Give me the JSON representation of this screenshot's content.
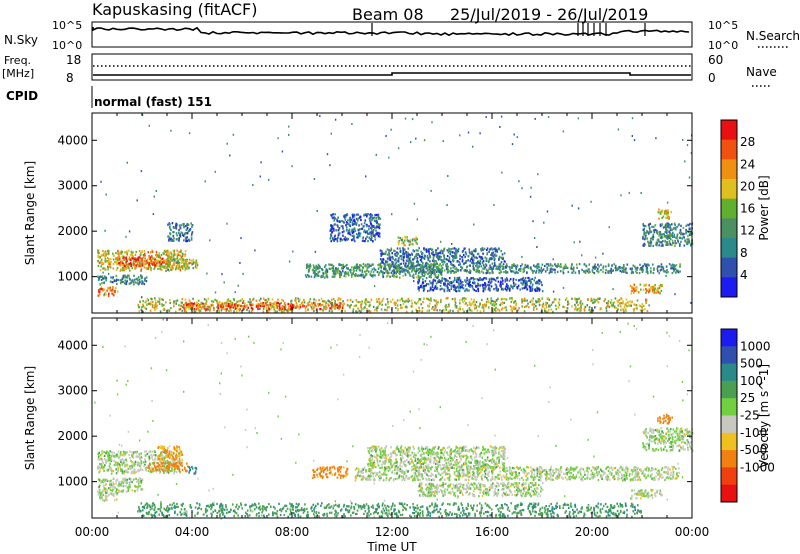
{
  "header": {
    "station": "Kapuskasing (fitACF)",
    "beam": "Beam 08",
    "date_range": "25/Jul/2019 - 26/Jul/2019"
  },
  "status_panels": {
    "nsky_label": "N.Sky",
    "nsky_ticks": [
      "10^5",
      "10^0"
    ],
    "nsearch_label": "N.Search",
    "nsearch_ticks": [
      "10^5",
      "10^0"
    ],
    "freq_label": "Freq.",
    "freq_unit": "[MHz]",
    "freq_ticks": [
      "18",
      "8"
    ],
    "nave_label": "Nave",
    "nave_ticks": [
      "60",
      "0"
    ],
    "cpid_label": "CPID",
    "cpid_value": "normal (fast) 151"
  },
  "chart_data": [
    {
      "type": "heatmap",
      "quantity": "Power",
      "ylabel": "Slant Range [km]",
      "colorbar_label": "Power [dB]",
      "colorbar_ticks": [
        "28",
        "24",
        "20",
        "16",
        "12",
        "8",
        "4"
      ],
      "colorbar_ticks_values": [
        28,
        24,
        20,
        16,
        12,
        8,
        4
      ],
      "colorbar_range": [
        0,
        32
      ],
      "colors": [
        "#1c1cf0",
        "#3050b0",
        "#2a8a8a",
        "#4a9060",
        "#60b030",
        "#e0c020",
        "#f09010",
        "#f05010",
        "#e81010"
      ],
      "ylim": [
        200,
        4600
      ],
      "yticks": [
        "1000",
        "2000",
        "3000",
        "4000"
      ],
      "yticks_values": [
        1000,
        2000,
        3000,
        4000
      ],
      "xlim_hours": [
        0,
        24
      ],
      "scatter_regions": [
        {
          "t": [
            0.2,
            3.8
          ],
          "r": [
            1150,
            1600
          ],
          "value": 20
        },
        {
          "t": [
            1.0,
            2.8
          ],
          "r": [
            1250,
            1450
          ],
          "value": 27
        },
        {
          "t": [
            2.8,
            4.2
          ],
          "r": [
            1200,
            1400
          ],
          "value": 18
        },
        {
          "t": [
            0.2,
            2.2
          ],
          "r": [
            850,
            1050
          ],
          "value": 10
        },
        {
          "t": [
            0.2,
            1.0
          ],
          "r": [
            600,
            800
          ],
          "value": 24
        },
        {
          "t": [
            3.0,
            4.0
          ],
          "r": [
            1800,
            2200
          ],
          "value": 8
        },
        {
          "t": [
            1.8,
            22.2
          ],
          "r": [
            250,
            550
          ],
          "value": 18
        },
        {
          "t": [
            3.5,
            10.0
          ],
          "r": [
            300,
            450
          ],
          "value": 26
        },
        {
          "t": [
            8.5,
            14.0
          ],
          "r": [
            1000,
            1300
          ],
          "value": 12
        },
        {
          "t": [
            11.5,
            23.5
          ],
          "r": [
            1100,
            1300
          ],
          "value": 10
        },
        {
          "t": [
            11.5,
            16.5
          ],
          "r": [
            1300,
            1650
          ],
          "value": 8
        },
        {
          "t": [
            12.2,
            13.0
          ],
          "r": [
            1700,
            1900
          ],
          "value": 16
        },
        {
          "t": [
            13.0,
            18.0
          ],
          "r": [
            700,
            1000
          ],
          "value": 6
        },
        {
          "t": [
            21.5,
            22.8
          ],
          "r": [
            650,
            850
          ],
          "value": 22
        },
        {
          "t": [
            22.0,
            24.0
          ],
          "r": [
            1700,
            2200
          ],
          "value": 10
        },
        {
          "t": [
            22.6,
            23.2
          ],
          "r": [
            2300,
            2500
          ],
          "value": 20
        },
        {
          "t": [
            9.5,
            11.5
          ],
          "r": [
            1800,
            2400
          ],
          "value": 6
        }
      ]
    },
    {
      "type": "heatmap",
      "quantity": "Velocity",
      "ylabel": "Slant Range [km]",
      "xlabel": "Time UT",
      "colorbar_label": "Velocity [m s^-1]",
      "colorbar_ticks": [
        "1000",
        "500",
        "100",
        "25",
        "-25",
        "-100",
        "-500",
        "-1000"
      ],
      "colorbar_ticks_values": [
        1000,
        500,
        100,
        25,
        -25,
        -100,
        -500,
        -1000
      ],
      "colors": [
        "#1c1cf0",
        "#3050b0",
        "#2a8a8a",
        "#4aa050",
        "#70d040",
        "#c8c8c0",
        "#f0c020",
        "#f08010",
        "#f04010",
        "#e81010"
      ],
      "ylim": [
        200,
        4600
      ],
      "yticks": [
        "1000",
        "2000",
        "3000",
        "4000"
      ],
      "yticks_values": [
        1000,
        2000,
        3000,
        4000
      ],
      "xticks": [
        "00:00",
        "04:00",
        "08:00",
        "12:00",
        "16:00",
        "20:00",
        "00:00"
      ],
      "xticks_hours": [
        0,
        4,
        8,
        12,
        16,
        20,
        24
      ],
      "scatter_regions": [
        {
          "t": [
            0.2,
            3.5
          ],
          "r": [
            1200,
            1700
          ],
          "value": 0
        },
        {
          "t": [
            2.2,
            3.8
          ],
          "r": [
            1250,
            1450
          ],
          "value": -300
        },
        {
          "t": [
            2.6,
            3.6
          ],
          "r": [
            1500,
            1800
          ],
          "value": -100
        },
        {
          "t": [
            3.8,
            4.2
          ],
          "r": [
            1200,
            1350
          ],
          "value": 200
        },
        {
          "t": [
            0.2,
            2.0
          ],
          "r": [
            800,
            1100
          ],
          "value": 0
        },
        {
          "t": [
            0.2,
            1.0
          ],
          "r": [
            600,
            800
          ],
          "value": 0
        },
        {
          "t": [
            1.8,
            22.0
          ],
          "r": [
            250,
            550
          ],
          "value": 80
        },
        {
          "t": [
            8.8,
            10.2
          ],
          "r": [
            1100,
            1350
          ],
          "value": -150
        },
        {
          "t": [
            10.5,
            23.5
          ],
          "r": [
            1050,
            1350
          ],
          "value": 0
        },
        {
          "t": [
            11.0,
            16.5
          ],
          "r": [
            1300,
            1800
          ],
          "value": 0
        },
        {
          "t": [
            13.0,
            18.0
          ],
          "r": [
            700,
            1000
          ],
          "value": 0
        },
        {
          "t": [
            21.5,
            22.8
          ],
          "r": [
            650,
            850
          ],
          "value": 0
        },
        {
          "t": [
            22.0,
            24.0
          ],
          "r": [
            1700,
            2200
          ],
          "value": 0
        },
        {
          "t": [
            22.6,
            23.2
          ],
          "r": [
            2300,
            2500
          ],
          "value": -200
        }
      ]
    }
  ]
}
